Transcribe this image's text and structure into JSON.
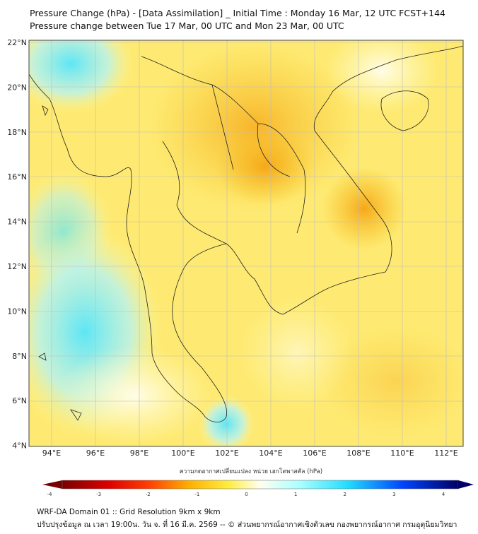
{
  "title": {
    "line1": "Pressure Change (hPa) - [Data Assimilation] _ Initial Time : Monday 16 Mar, 12 UTC FCST+144",
    "line2": "Pressure change between Tue 17 Mar, 00 UTC and Mon 23 Mar, 00 UTC"
  },
  "map": {
    "lat_labels": [
      "22°N",
      "20°N",
      "18°N",
      "16°N",
      "14°N",
      "12°N",
      "10°N",
      "8°N",
      "6°N",
      "4°N"
    ],
    "lon_labels": [
      "94°E",
      "96°E",
      "98°E",
      "100°E",
      "102°E",
      "104°E",
      "106°E",
      "108°E",
      "110°E",
      "112°E"
    ],
    "colors": {
      "land_line": "#222222",
      "grid": "#bbbbbb"
    }
  },
  "colorbar": {
    "label": "ความกดอากาศเปลี่ยนแปลง หน่วย เฮกโตพาสคัล (hPa)",
    "ticks": [
      "-4",
      "-3",
      "-2",
      "-1",
      "0",
      "1",
      "2",
      "3",
      "4"
    ],
    "range": [
      -4,
      4
    ],
    "colors": [
      "#7a0000",
      "#ff0000",
      "#ff9900",
      "#ffe000",
      "#ffffcc",
      "#ffffff",
      "#66ffff",
      "#22ccff",
      "#0033ff",
      "#000066"
    ]
  },
  "footer": {
    "line1": "WRF-DA Domain 01 :: Grid Resolution 9km x 9km",
    "line2": "ปรับปรุงข้อมูล ณ เวลา 19:00น. วัน จ. ที่ 16 มี.ค. 2569 -- © ส่วนพยากรณ์อากาศเชิงตัวเลข กองพยากรณ์อากาศ กรมอุตุนิยมวิทยา"
  }
}
